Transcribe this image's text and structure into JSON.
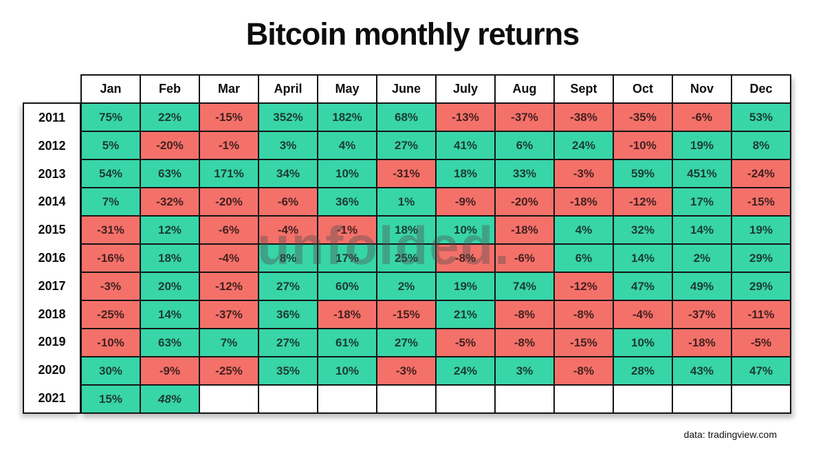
{
  "title": "Bitcoin monthly returns",
  "watermark": "unfolded.",
  "source_note": "data: tradingview.com",
  "colors": {
    "positive_bg": "#38d5a9",
    "negative_bg": "#f4716a",
    "empty_bg": "#ffffff",
    "grid_border": "#141414"
  },
  "chart_data": {
    "type": "table",
    "title": "Bitcoin monthly returns",
    "columns": [
      "Jan",
      "Feb",
      "Mar",
      "April",
      "May",
      "June",
      "July",
      "Aug",
      "Sept",
      "Oct",
      "Nov",
      "Dec"
    ],
    "rows": [
      {
        "year": "2011",
        "values": [
          "75%",
          "22%",
          "-15%",
          "352%",
          "182%",
          "68%",
          "-13%",
          "-37%",
          "-38%",
          "-35%",
          "-6%",
          "53%"
        ]
      },
      {
        "year": "2012",
        "values": [
          "5%",
          "-20%",
          "-1%",
          "3%",
          "4%",
          "27%",
          "41%",
          "6%",
          "24%",
          "-10%",
          "19%",
          "8%"
        ]
      },
      {
        "year": "2013",
        "values": [
          "54%",
          "63%",
          "171%",
          "34%",
          "10%",
          "-31%",
          "18%",
          "33%",
          "-3%",
          "59%",
          "451%",
          "-24%"
        ]
      },
      {
        "year": "2014",
        "values": [
          "7%",
          "-32%",
          "-20%",
          "-6%",
          "36%",
          "1%",
          "-9%",
          "-20%",
          "-18%",
          "-12%",
          "17%",
          "-15%"
        ]
      },
      {
        "year": "2015",
        "values": [
          "-31%",
          "12%",
          "-6%",
          "-4%",
          "-1%",
          "18%",
          "10%",
          "-18%",
          "4%",
          "32%",
          "14%",
          "19%"
        ]
      },
      {
        "year": "2016",
        "values": [
          "-16%",
          "18%",
          "-4%",
          "8%",
          "17%",
          "25%",
          "-8%",
          "-6%",
          "6%",
          "14%",
          "2%",
          "29%"
        ]
      },
      {
        "year": "2017",
        "values": [
          "-3%",
          "20%",
          "-12%",
          "27%",
          "60%",
          "2%",
          "19%",
          "74%",
          "-12%",
          "47%",
          "49%",
          "29%"
        ]
      },
      {
        "year": "2018",
        "values": [
          "-25%",
          "14%",
          "-37%",
          "36%",
          "-18%",
          "-15%",
          "21%",
          "-8%",
          "-8%",
          "-4%",
          "-37%",
          "-11%"
        ]
      },
      {
        "year": "2019",
        "values": [
          "-10%",
          "63%",
          "7%",
          "27%",
          "61%",
          "27%",
          "-5%",
          "-8%",
          "-15%",
          "10%",
          "-18%",
          "-5%"
        ]
      },
      {
        "year": "2020",
        "values": [
          "30%",
          "-9%",
          "-25%",
          "35%",
          "10%",
          "-3%",
          "24%",
          "3%",
          "-8%",
          "28%",
          "43%",
          "47%"
        ]
      },
      {
        "year": "2021",
        "values": [
          "15%",
          "48%",
          "",
          "",
          "",
          "",
          "",
          "",
          "",
          "",
          "",
          ""
        ],
        "italic_indices": [
          1
        ]
      }
    ]
  }
}
